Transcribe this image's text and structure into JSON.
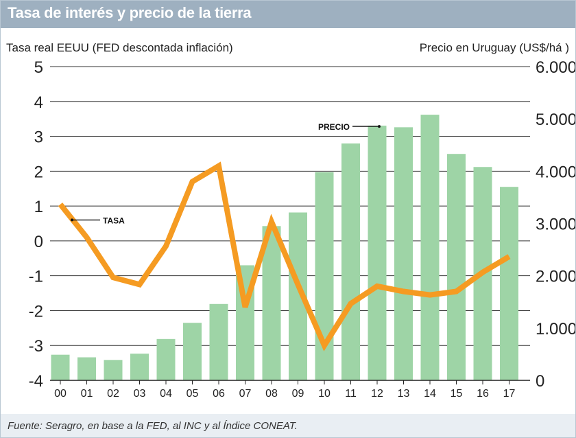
{
  "header": {
    "title": "Tasa de interés y precio de la tierra"
  },
  "footer": {
    "source": "Fuente: Seragro, en base a la FED, al INC y al Índice CONEAT."
  },
  "colors": {
    "bar": "#9ed4a6",
    "line": "#f59b22",
    "title_bar": "#9eb0c0",
    "grid": "#333333"
  },
  "chart_data": {
    "type": "bar",
    "title": "Tasa de interés y precio de la tierra",
    "categories": [
      "00",
      "01",
      "02",
      "03",
      "04",
      "05",
      "06",
      "07",
      "08",
      "09",
      "10",
      "11",
      "12",
      "13",
      "14",
      "15",
      "16",
      "17"
    ],
    "left_axis": {
      "label": "Tasa real EEUU (FED descontada inflación)",
      "ylim": [
        -4,
        5
      ],
      "ticks": [
        "5",
        "4",
        "3",
        "2",
        "1",
        "0",
        "-1",
        "-2",
        "-3",
        "-4"
      ]
    },
    "right_axis": {
      "label": "Precio en Uruguay (US$/há )",
      "ylim": [
        0,
        6000
      ],
      "ticks": [
        "6.000",
        "5.000",
        "4.000",
        "3.000",
        "2.000",
        "1.000",
        "0"
      ]
    },
    "series": [
      {
        "name": "PRECIO",
        "type": "bar",
        "axis": "right",
        "values": [
          490,
          440,
          390,
          510,
          790,
          1100,
          1460,
          2200,
          2950,
          3210,
          3980,
          4530,
          4870,
          4840,
          5080,
          4330,
          4080,
          3700
        ]
      },
      {
        "name": "TASA",
        "type": "line",
        "axis": "left",
        "values": [
          1.05,
          0.1,
          -1.05,
          -1.25,
          -0.15,
          1.7,
          2.15,
          -1.9,
          0.55,
          -1.25,
          -3.0,
          -1.8,
          -1.3,
          -1.45,
          -1.55,
          -1.45,
          -0.9,
          -0.45
        ]
      }
    ],
    "annotations": [
      {
        "text": "TASA",
        "series": "TASA"
      },
      {
        "text": "PRECIO",
        "series": "PRECIO"
      }
    ],
    "grid": true
  }
}
